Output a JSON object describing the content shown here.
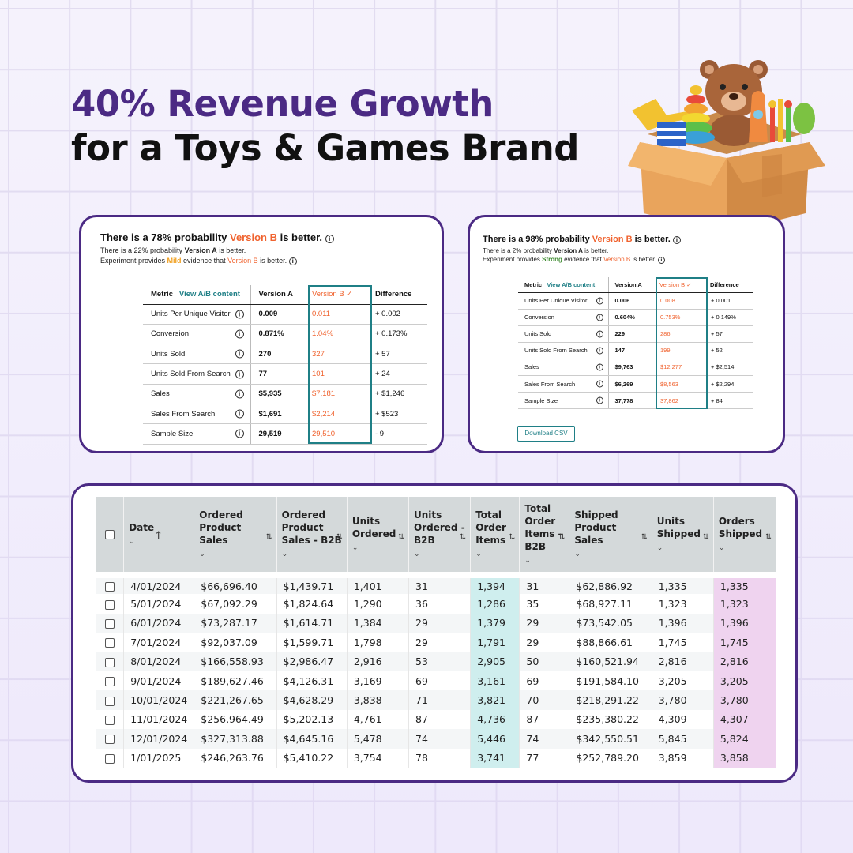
{
  "headline": {
    "line1": "40% Revenue Growth",
    "line2": "for a Toys & Games Brand",
    "accent_color": "#4b2a84"
  },
  "illustration": {
    "icon": "toy-box-icon"
  },
  "card_a": {
    "title_pre": "There is a 78% probability ",
    "title_version": "Version B",
    "title_post": " is better.",
    "sub1_pre": "There is a 22% probability ",
    "sub1_bold": "Version A",
    "sub1_post": " is better.",
    "sub2_pre": "Experiment provides ",
    "sub2_strength": "Mild",
    "sub2_mid": " evidence that ",
    "sub2_version": "Version B",
    "sub2_post": " is better.",
    "headers": {
      "metric": "Metric",
      "view": "View A/B content",
      "a": "Version A",
      "b": "Version B ✓",
      "diff": "Difference"
    },
    "rows": [
      {
        "metric": "Units Per Unique Visitor",
        "a": "0.009",
        "b": "0.011",
        "diff": "+ 0.002"
      },
      {
        "metric": "Conversion",
        "a": "0.871%",
        "b": "1.04%",
        "diff": "+ 0.173%"
      },
      {
        "metric": "Units Sold",
        "a": "270",
        "b": "327",
        "diff": "+ 57"
      },
      {
        "metric": "Units Sold From Search",
        "a": "77",
        "b": "101",
        "diff": "+ 24"
      },
      {
        "metric": "Sales",
        "a": "$5,935",
        "b": "$7,181",
        "diff": "+ $1,246"
      },
      {
        "metric": "Sales From Search",
        "a": "$1,691",
        "b": "$2,214",
        "diff": "+ $523"
      },
      {
        "metric": "Sample Size",
        "a": "29,519",
        "b": "29,510",
        "diff": "- 9"
      }
    ]
  },
  "card_b": {
    "title_pre": "There is a 98% probability ",
    "title_version": "Version B",
    "title_post": " is better.",
    "sub1_pre": "There is a 2% probability ",
    "sub1_bold": "Version A",
    "sub1_post": " is better.",
    "sub2_pre": "Experiment provides ",
    "sub2_strength": "Strong",
    "sub2_mid": " evidence that ",
    "sub2_version": "Version B",
    "sub2_post": " is better.",
    "headers": {
      "metric": "Metric",
      "view": "View A/B content",
      "a": "Version A",
      "b": "Version B ✓",
      "diff": "Difference"
    },
    "rows": [
      {
        "metric": "Units Per Unique Visitor",
        "a": "0.006",
        "b": "0.008",
        "diff": "+ 0.001"
      },
      {
        "metric": "Conversion",
        "a": "0.604%",
        "b": "0.753%",
        "diff": "+ 0.149%"
      },
      {
        "metric": "Units Sold",
        "a": "229",
        "b": "286",
        "diff": "+ 57"
      },
      {
        "metric": "Units Sold From Search",
        "a": "147",
        "b": "199",
        "diff": "+ 52"
      },
      {
        "metric": "Sales",
        "a": "$9,763",
        "b": "$12,277",
        "diff": "+ $2,514"
      },
      {
        "metric": "Sales From Search",
        "a": "$6,269",
        "b": "$8,563",
        "diff": "+ $2,294"
      },
      {
        "metric": "Sample Size",
        "a": "37,778",
        "b": "37,862",
        "diff": "+ 84"
      }
    ],
    "download_label": "Download CSV"
  },
  "sales_table": {
    "headers": [
      {
        "label": "Date",
        "sort": "↑"
      },
      {
        "label": "Ordered Product Sales",
        "sort": "⇅"
      },
      {
        "label": "Ordered Product Sales - B2B",
        "sort": "⇅"
      },
      {
        "label": "Units Ordered",
        "sort": "⇅"
      },
      {
        "label": "Units Ordered - B2B",
        "sort": "⇅"
      },
      {
        "label": "Total Order Items",
        "sort": "⇅"
      },
      {
        "label": "Total Order Items - B2B",
        "sort": "⇅"
      },
      {
        "label": "Shipped Product Sales",
        "sort": "⇅"
      },
      {
        "label": "Units Shipped",
        "sort": "⇅"
      },
      {
        "label": "Orders Shipped",
        "sort": "⇅"
      }
    ],
    "chevron": "⌄",
    "rows": [
      [
        "4/01/2024",
        "$66,696.40",
        "$1,439.71",
        "1,401",
        "31",
        "1,394",
        "31",
        "$62,886.92",
        "1,335",
        "1,335"
      ],
      [
        "5/01/2024",
        "$67,092.29",
        "$1,824.64",
        "1,290",
        "36",
        "1,286",
        "35",
        "$68,927.11",
        "1,323",
        "1,323"
      ],
      [
        "6/01/2024",
        "$73,287.17",
        "$1,614.71",
        "1,384",
        "29",
        "1,379",
        "29",
        "$73,542.05",
        "1,396",
        "1,396"
      ],
      [
        "7/01/2024",
        "$92,037.09",
        "$1,599.71",
        "1,798",
        "29",
        "1,791",
        "29",
        "$88,866.61",
        "1,745",
        "1,745"
      ],
      [
        "8/01/2024",
        "$166,558.93",
        "$2,986.47",
        "2,916",
        "53",
        "2,905",
        "50",
        "$160,521.94",
        "2,816",
        "2,816"
      ],
      [
        "9/01/2024",
        "$189,627.46",
        "$4,126.31",
        "3,169",
        "69",
        "3,161",
        "69",
        "$191,584.10",
        "3,205",
        "3,205"
      ],
      [
        "10/01/2024",
        "$221,267.65",
        "$4,628.29",
        "3,838",
        "71",
        "3,821",
        "70",
        "$218,291.22",
        "3,780",
        "3,780"
      ],
      [
        "11/01/2024",
        "$256,964.49",
        "$5,202.13",
        "4,761",
        "87",
        "4,736",
        "87",
        "$235,380.22",
        "4,309",
        "4,307"
      ],
      [
        "12/01/2024",
        "$327,313.88",
        "$4,645.16",
        "5,478",
        "74",
        "5,446",
        "74",
        "$342,550.51",
        "5,845",
        "5,824"
      ],
      [
        "1/01/2025",
        "$246,263.76",
        "$5,410.22",
        "3,754",
        "78",
        "3,741",
        "77",
        "$252,789.20",
        "3,859",
        "3,858"
      ]
    ],
    "highlight_colors": {
      "total_order_items": "#cfeeee",
      "orders_shipped": "#efd3ef"
    }
  },
  "colors": {
    "purple": "#4b2a84",
    "orange": "#f0632f",
    "teal": "#1f7f86",
    "mild": "#f0a020",
    "strong": "#3d8b2f"
  }
}
